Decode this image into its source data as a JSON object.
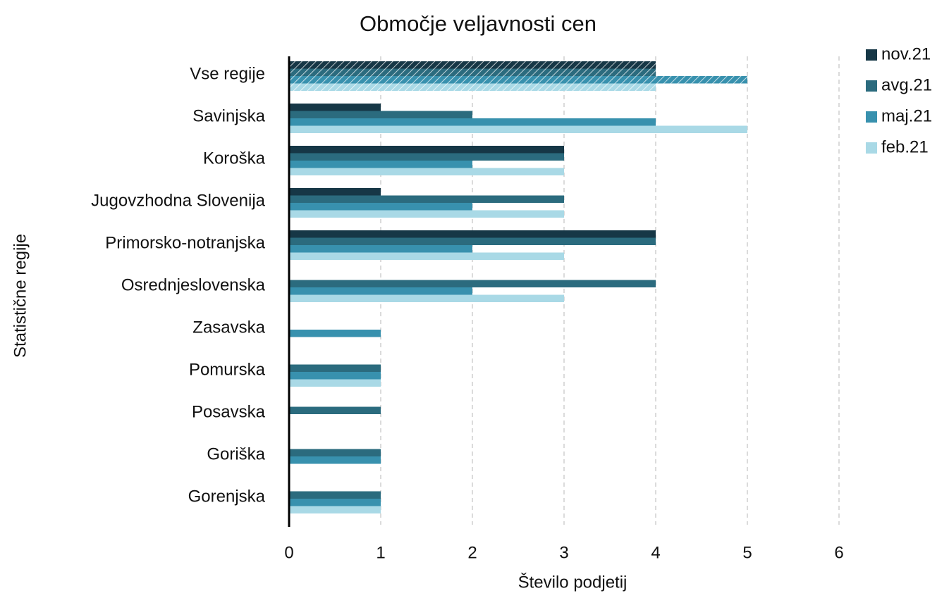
{
  "chart_data": {
    "type": "bar",
    "orientation": "horizontal",
    "title": "Območje veljavnosti cen",
    "x_label": "Število podjetij",
    "y_label": "Statistične regije",
    "categories": [
      "Vse regije",
      "Savinjska",
      "Koroška",
      "Jugovzhodna Slovenija",
      "Primorsko-notranjska",
      "Osrednjeslovenska",
      "Zasavska",
      "Pomurska",
      "Posavska",
      "Goriška",
      "Gorenjska"
    ],
    "series": [
      {
        "name": "nov.21",
        "color": "#163746",
        "values": [
          4,
          1,
          3,
          1,
          4,
          0,
          0,
          0,
          0,
          0,
          0
        ]
      },
      {
        "name": "avg.21",
        "color": "#2b6b7e",
        "values": [
          4,
          2,
          3,
          3,
          4,
          4,
          0,
          1,
          1,
          1,
          1
        ]
      },
      {
        "name": "maj.21",
        "color": "#3891ae",
        "values": [
          5,
          4,
          2,
          2,
          2,
          2,
          1,
          1,
          0,
          1,
          1
        ]
      },
      {
        "name": "feb.21",
        "color": "#a9d9e6",
        "values": [
          4,
          5,
          3,
          3,
          3,
          3,
          0,
          1,
          0,
          0,
          1
        ]
      }
    ],
    "xlim": [
      0,
      6
    ],
    "xticks": [
      0,
      1,
      2,
      3,
      4,
      5,
      6
    ],
    "grid": true,
    "legend": "right"
  }
}
